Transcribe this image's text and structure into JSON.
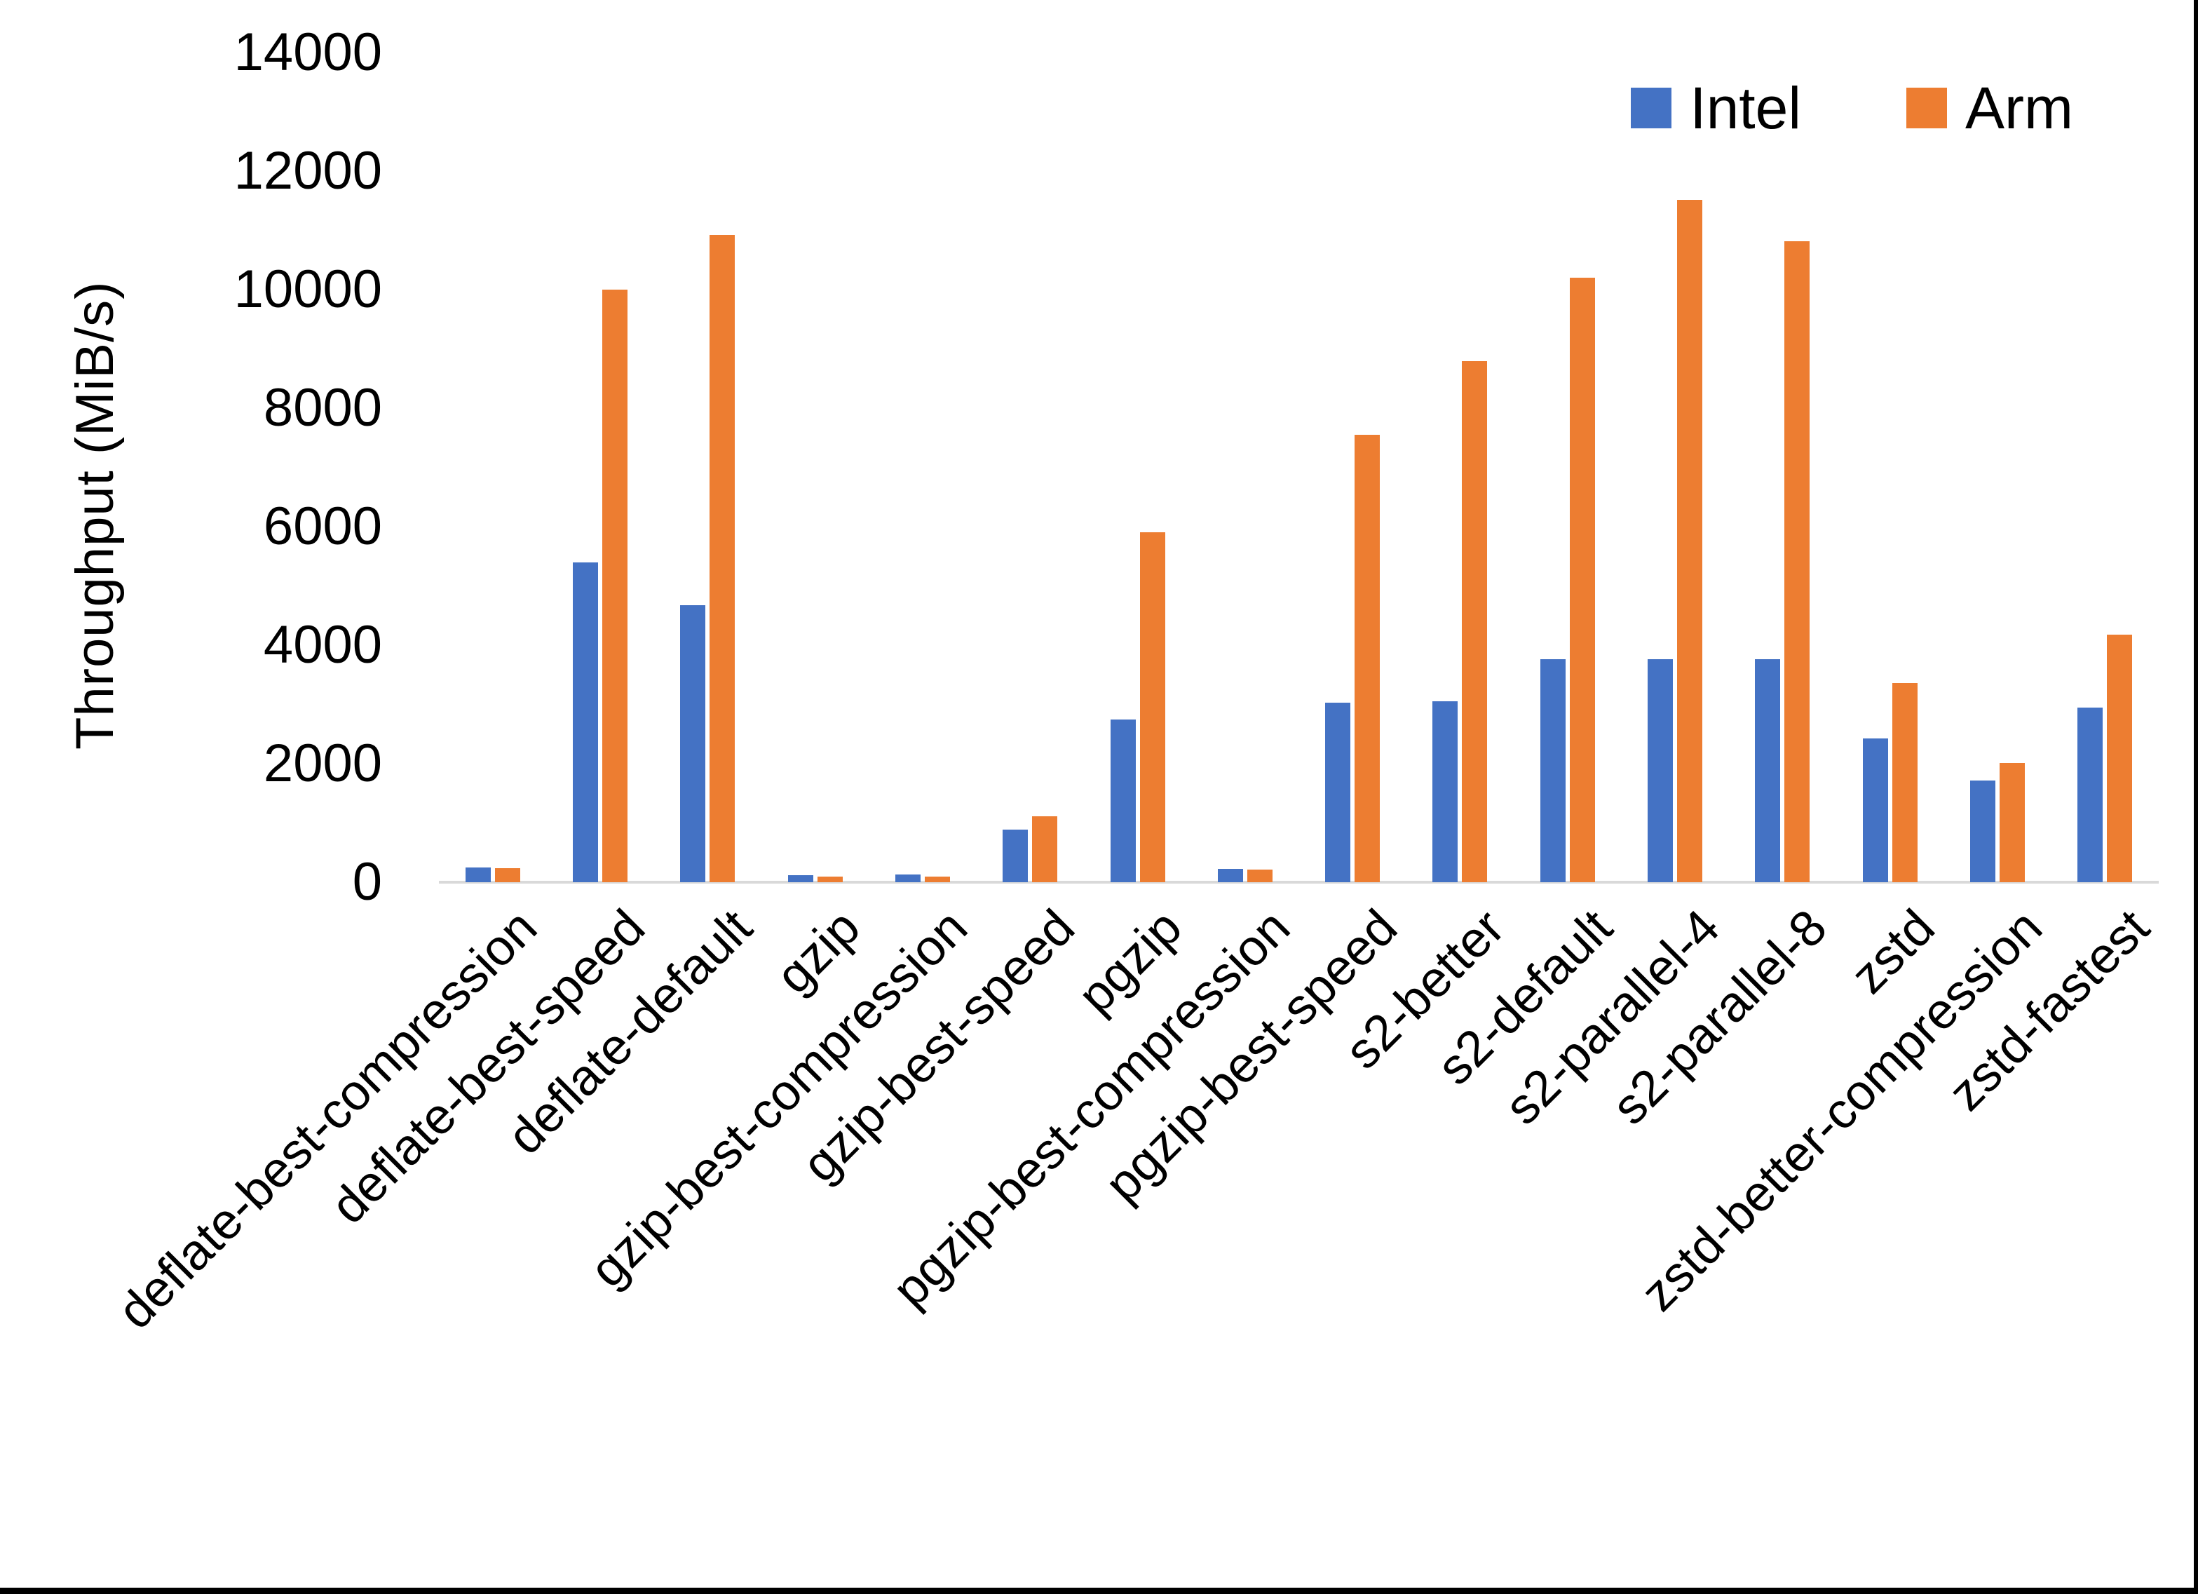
{
  "page": {
    "background": "#FFFFFF",
    "edge_right_color": "#000000",
    "edge_bottom_color": "#000000"
  },
  "chart_data": {
    "type": "bar",
    "title": "",
    "xlabel": "",
    "ylabel": "Throughput (MiB/s)",
    "ylim": [
      0,
      14000
    ],
    "ytick_step": 2000,
    "grid": false,
    "legend_position": "top-right",
    "axis_line_color": "#D9D9D9",
    "categories": [
      "deflate-best-compression",
      "deflate-best-speed",
      "deflate-default",
      "gzip",
      "gzip-best-compression",
      "gzip-best-speed",
      "pgzip",
      "pgzip-best-compression",
      "pgzip-best-speed",
      "s2-better",
      "s2-default",
      "s2-parallel-4",
      "s2-parallel-8",
      "zstd",
      "zstd-better-compression",
      "zstd-fastest"
    ],
    "series": [
      {
        "name": "Intel",
        "color": "#4472C4",
        "values": [
          250,
          5400,
          4680,
          120,
          125,
          890,
          2750,
          225,
          3030,
          3050,
          3760,
          3760,
          3760,
          2430,
          1720,
          2950
        ]
      },
      {
        "name": "Arm",
        "color": "#ED7D31",
        "values": [
          235,
          10000,
          10920,
          95,
          100,
          1110,
          5900,
          215,
          7550,
          8790,
          10200,
          11520,
          10820,
          3360,
          2010,
          4180
        ]
      }
    ]
  }
}
